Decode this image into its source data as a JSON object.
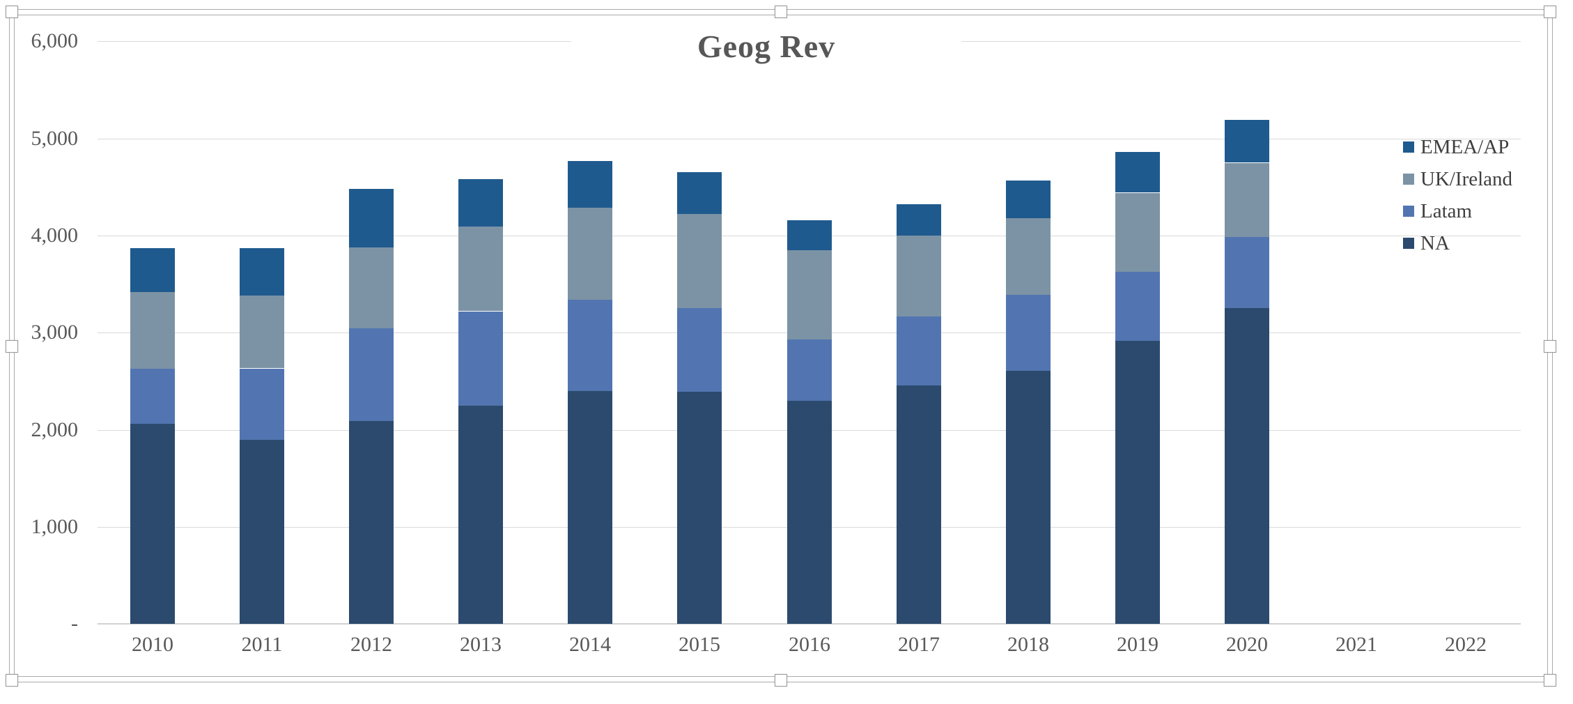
{
  "chart_title": "Geog Rev",
  "chart_data": {
    "type": "bar",
    "stacked": true,
    "title": "Geog Rev",
    "xlabel": "",
    "ylabel": "",
    "categories": [
      "2010",
      "2011",
      "2012",
      "2013",
      "2014",
      "2015",
      "2016",
      "2017",
      "2018",
      "2019",
      "2020",
      "2021",
      "2022"
    ],
    "series": [
      {
        "name": "NA",
        "color": "#2b4a6d",
        "values": [
          2060,
          1900,
          2090,
          2250,
          2400,
          2390,
          2300,
          2460,
          2610,
          2920,
          3250,
          0,
          0
        ]
      },
      {
        "name": "Latam",
        "color": "#5275b1",
        "values": [
          570,
          730,
          960,
          970,
          940,
          860,
          630,
          710,
          780,
          710,
          740,
          0,
          0
        ]
      },
      {
        "name": "UK/Ireland",
        "color": "#7c93a5",
        "values": [
          790,
          750,
          830,
          870,
          950,
          970,
          920,
          830,
          790,
          810,
          760,
          0,
          0
        ]
      },
      {
        "name": "EMEA/AP",
        "color": "#1f5a8e",
        "values": [
          450,
          490,
          600,
          490,
          480,
          430,
          310,
          320,
          390,
          420,
          440,
          0,
          0
        ]
      }
    ],
    "totals": [
      3870,
      3870,
      4480,
      4580,
      4770,
      4650,
      4160,
      4320,
      4570,
      4860,
      5190,
      0,
      0
    ],
    "ylim": [
      0,
      6000
    ],
    "yticks": [
      {
        "value": 0,
        "label": "-"
      },
      {
        "value": 1000,
        "label": "1,000"
      },
      {
        "value": 2000,
        "label": "2,000"
      },
      {
        "value": 3000,
        "label": "3,000"
      },
      {
        "value": 4000,
        "label": "4,000"
      },
      {
        "value": 5000,
        "label": "5,000"
      },
      {
        "value": 6000,
        "label": "6,000"
      }
    ],
    "grid": "horizontal",
    "legend_position": "right",
    "legend_order": [
      "EMEA/AP",
      "UK/Ireland",
      "Latam",
      "NA"
    ]
  },
  "colors": {
    "gridline": "#d9d9d9",
    "axis_line": "#d2d2d2",
    "axis_text": "#595959",
    "title_text": "#575757",
    "legend_text": "#3f3f3f",
    "selection_frame": "#ababab"
  },
  "selection": {
    "state": "chart-selected",
    "handle_shape": "square"
  }
}
